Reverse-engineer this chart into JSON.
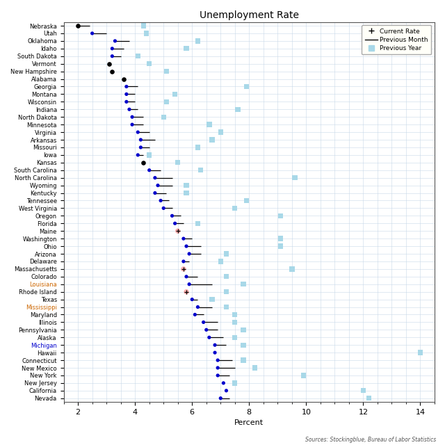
{
  "title": "Unemployment Rate",
  "xlabel": "Percent",
  "source": "Sources: Stockingblue, Bureau of Labor Statistics",
  "xlim": [
    1.5,
    14.5
  ],
  "xticks": [
    2,
    4,
    6,
    8,
    10,
    12,
    14
  ],
  "states": [
    "Nebraska",
    "Utah",
    "Oklahoma",
    "Idaho",
    "South Dakota",
    "Vermont",
    "New Hampshire",
    "Alabama",
    "Georgia",
    "Montana",
    "Wisconsin",
    "Indiana",
    "North Dakota",
    "Minnesota",
    "Virginia",
    "Arkansas",
    "Missouri",
    "Iowa",
    "Kansas",
    "South Carolina",
    "North Carolina",
    "Wyoming",
    "Kentucky",
    "Tennessee",
    "West Virginia",
    "Oregon",
    "Florida",
    "Maine",
    "Washington",
    "Ohio",
    "Arizona",
    "Delaware",
    "Massachusetts",
    "Colorado",
    "Louisiana",
    "Rhode Island",
    "Texas",
    "Mississippi",
    "Maryland",
    "Illinois",
    "Pennsylvania",
    "Alaska",
    "Michigan",
    "Hawaii",
    "Connecticut",
    "New Mexico",
    "New York",
    "New Jersey",
    "California",
    "Nevada"
  ],
  "current_rate": [
    2.0,
    2.5,
    3.3,
    3.2,
    3.2,
    3.1,
    3.2,
    3.6,
    3.7,
    3.7,
    3.7,
    3.8,
    3.9,
    3.9,
    4.1,
    4.2,
    4.2,
    4.1,
    4.3,
    4.5,
    4.7,
    4.8,
    4.7,
    4.9,
    5.0,
    5.3,
    5.4,
    5.5,
    5.7,
    5.8,
    5.9,
    5.7,
    5.7,
    5.8,
    5.9,
    5.8,
    6.0,
    6.2,
    6.1,
    6.4,
    6.5,
    6.6,
    6.8,
    6.8,
    6.9,
    6.9,
    6.9,
    7.1,
    7.2,
    7.0
  ],
  "prev_month": [
    2.4,
    3.0,
    3.8,
    3.6,
    3.5,
    null,
    null,
    null,
    4.1,
    4.0,
    4.0,
    4.1,
    4.3,
    4.3,
    4.5,
    4.7,
    4.5,
    4.3,
    null,
    4.9,
    5.3,
    5.3,
    5.1,
    5.2,
    5.3,
    5.6,
    5.7,
    null,
    6.0,
    6.3,
    6.3,
    5.9,
    null,
    6.2,
    6.7,
    null,
    6.2,
    6.7,
    6.4,
    6.9,
    6.9,
    7.1,
    7.2,
    null,
    7.4,
    7.5,
    7.3,
    null,
    null,
    7.3
  ],
  "prev_year": [
    4.3,
    4.4,
    6.2,
    5.8,
    4.1,
    4.5,
    5.1,
    null,
    7.9,
    5.4,
    5.1,
    7.6,
    5.0,
    6.6,
    7.0,
    6.7,
    6.2,
    4.5,
    5.5,
    6.3,
    9.6,
    5.8,
    5.8,
    7.9,
    7.5,
    9.1,
    6.2,
    null,
    9.1,
    9.1,
    7.2,
    7.0,
    9.5,
    7.2,
    7.8,
    7.2,
    6.7,
    7.2,
    7.5,
    7.5,
    7.8,
    7.5,
    7.8,
    14.0,
    7.8,
    8.2,
    9.9,
    7.5,
    12.0,
    12.2
  ],
  "current_colors": [
    "black",
    "blue",
    "blue",
    "blue",
    "blue",
    "black",
    "black",
    "black",
    "blue",
    "blue",
    "blue",
    "blue",
    "blue",
    "blue",
    "blue",
    "blue",
    "blue",
    "blue",
    "black",
    "blue",
    "blue",
    "blue",
    "blue",
    "blue",
    "blue",
    "blue",
    "blue",
    "red",
    "blue",
    "blue",
    "blue",
    "blue",
    "red",
    "blue",
    "blue",
    "red",
    "blue",
    "blue",
    "blue",
    "blue",
    "blue",
    "blue",
    "blue",
    "blue",
    "blue",
    "blue",
    "blue",
    "blue",
    "blue",
    "blue"
  ],
  "label_colors": [
    "black",
    "black",
    "black",
    "black",
    "black",
    "black",
    "black",
    "black",
    "black",
    "black",
    "black",
    "black",
    "black",
    "black",
    "black",
    "black",
    "black",
    "black",
    "black",
    "black",
    "black",
    "black",
    "black",
    "black",
    "black",
    "black",
    "black",
    "black",
    "black",
    "black",
    "black",
    "black",
    "black",
    "black",
    "#cc6600",
    "black",
    "black",
    "#cc6600",
    "black",
    "black",
    "black",
    "black",
    "#0000cc",
    "black",
    "black",
    "black",
    "black",
    "black",
    "black",
    "black"
  ],
  "grid_color": "#c8d8e8",
  "dot_blue": "#0000cc",
  "dot_red_bg": "#ffb0b0",
  "square_color": "#a8d8e8",
  "legend_bg": "#fffff8",
  "figsize": [
    6.4,
    6.4
  ],
  "dpi": 100
}
